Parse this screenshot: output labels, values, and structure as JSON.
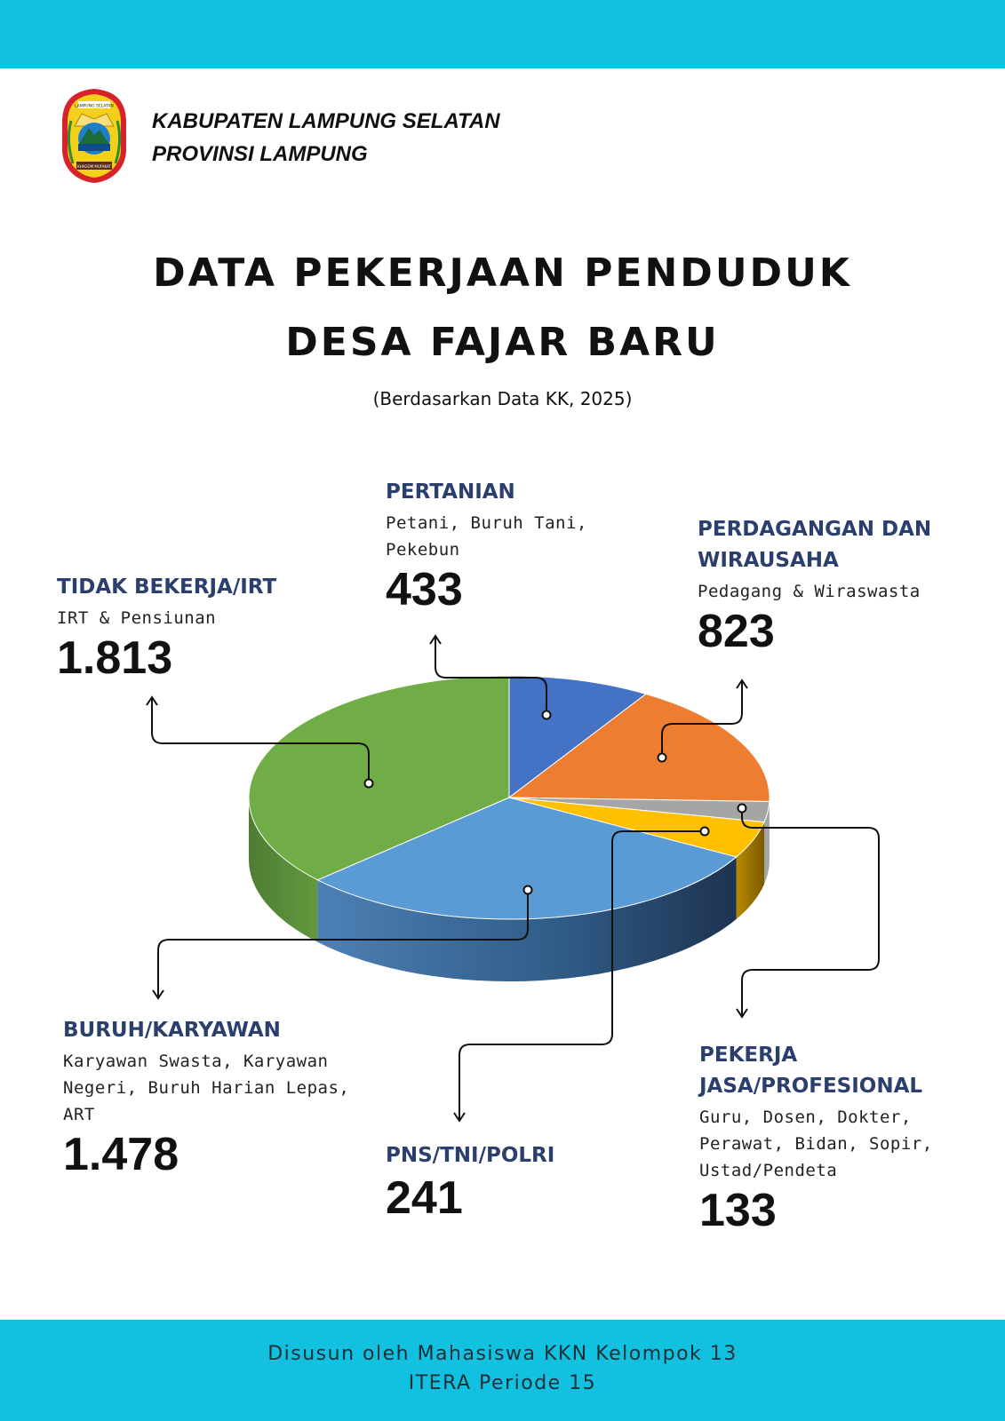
{
  "header": {
    "org_line1": "KABUPATEN LAMPUNG SELATAN",
    "org_line2": "PROVINSI LAMPUNG",
    "logo_text_top": "LAMPUNG SELATAN",
    "logo_text_bottom": "KHAGOM MUFAKAT"
  },
  "title_line1": "DATA PEKERJAAN PENDUDUK",
  "title_line2": "DESA FAJAR BARU",
  "subtitle": "(Berdasarkan Data KK, 2025)",
  "colors": {
    "band": "#12c1e0",
    "category_text": "#2b3f6e",
    "pertanian": "#4472c4",
    "perdagangan": "#ed7d31",
    "jasa": "#a5a5a5",
    "pns": "#ffc000",
    "buruh": "#5b9bd5",
    "tidak_bekerja": "#70ad47"
  },
  "chart_data": {
    "type": "pie",
    "style": "3d",
    "categories": [
      "PERTANIAN",
      "PERDAGANGAN DAN WIRAUSAHA",
      "PEKERJA JASA/PROFESIONAL",
      "PNS/TNI/POLRI",
      "BURUH/KARYAWAN",
      "TIDAK BEKERJA/IRT"
    ],
    "values": [
      433,
      823,
      133,
      241,
      1478,
      1813
    ],
    "value_labels": [
      "433",
      "823",
      "133",
      "241",
      "1.478",
      "1.813"
    ],
    "descriptions": [
      "Petani, Buruh Tani, Pekebun",
      "Pedagang & Wiraswasta",
      "Guru, Dosen, Dokter, Perawat, Bidan, Sopir, Ustad/Pendeta",
      "",
      "Karyawan Swasta, Karyawan Negeri, Buruh Harian Lepas, ART",
      "IRT & Pensiunan"
    ]
  },
  "labels": {
    "pertanian": {
      "cat": "PERTANIAN",
      "desc1": "Petani, Buruh Tani,",
      "desc2": "Pekebun",
      "value": "433"
    },
    "perdagangan": {
      "cat1": "PERDAGANGAN  DAN",
      "cat2": "WIRAUSAHA",
      "desc1": "Pedagang & Wiraswasta",
      "value": "823"
    },
    "tidak_bekerja": {
      "cat": "TIDAK BEKERJA/IRT",
      "desc1": "IRT & Pensiunan",
      "value": "1.813"
    },
    "buruh": {
      "cat": "BURUH/KARYAWAN",
      "desc1": "Karyawan Swasta, Karyawan",
      "desc2": "Negeri, Buruh Harian Lepas,",
      "desc3": "ART",
      "value": "1.478"
    },
    "pns": {
      "cat": "PNS/TNI/POLRI",
      "value": "241"
    },
    "jasa": {
      "cat1": "PEKERJA",
      "cat2": "JASA/PROFESIONAL",
      "desc1": "Guru, Dosen, Dokter,",
      "desc2": "Perawat, Bidan, Sopir,",
      "desc3": "Ustad/Pendeta",
      "value": "133"
    }
  },
  "footer": {
    "line1": "Disusun oleh Mahasiswa KKN Kelompok 13",
    "line2": "ITERA Periode 15"
  }
}
